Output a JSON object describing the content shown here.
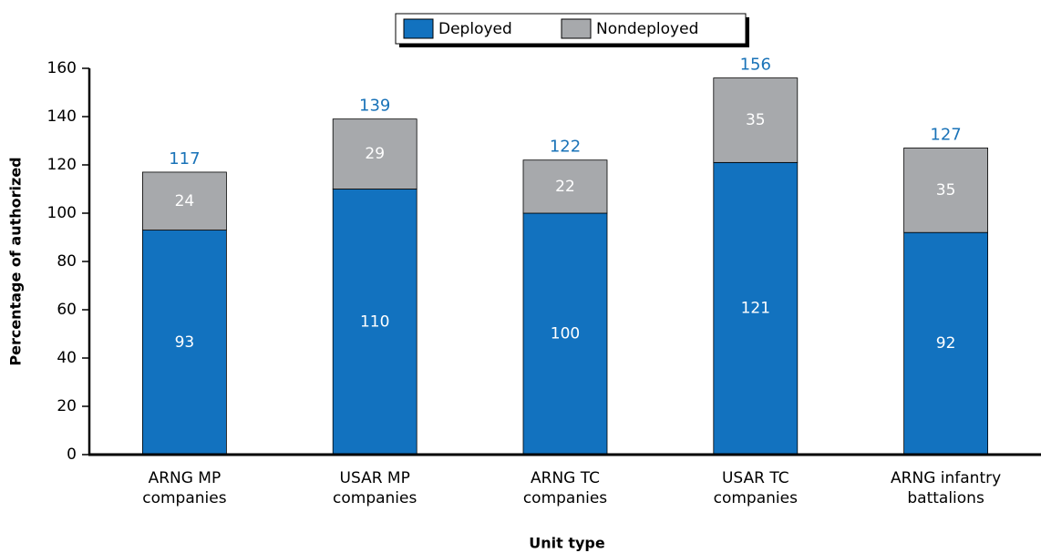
{
  "chart_data": {
    "type": "stacked_bar",
    "legend": "top",
    "categories": [
      [
        "ARNG MP",
        "companies"
      ],
      [
        "USAR MP",
        "companies"
      ],
      [
        "ARNG TC",
        "companies"
      ],
      [
        "USAR TC",
        "companies"
      ],
      [
        "ARNG infantry",
        "battalions"
      ]
    ],
    "series": [
      {
        "name": "Deployed",
        "color": "#1272bf",
        "values": [
          93,
          110,
          100,
          121,
          92
        ]
      },
      {
        "name": "Nondeployed",
        "color": "#a7a9ac",
        "values": [
          24,
          29,
          22,
          35,
          35
        ]
      }
    ],
    "totals": [
      117,
      139,
      122,
      156,
      127
    ],
    "total_color": "#1a73b8",
    "xlabel": "Unit type",
    "ylabel": "Percentage of authorized",
    "ylim": [
      0,
      160
    ],
    "yticks": [
      0,
      20,
      40,
      60,
      80,
      100,
      120,
      140,
      160
    ]
  }
}
